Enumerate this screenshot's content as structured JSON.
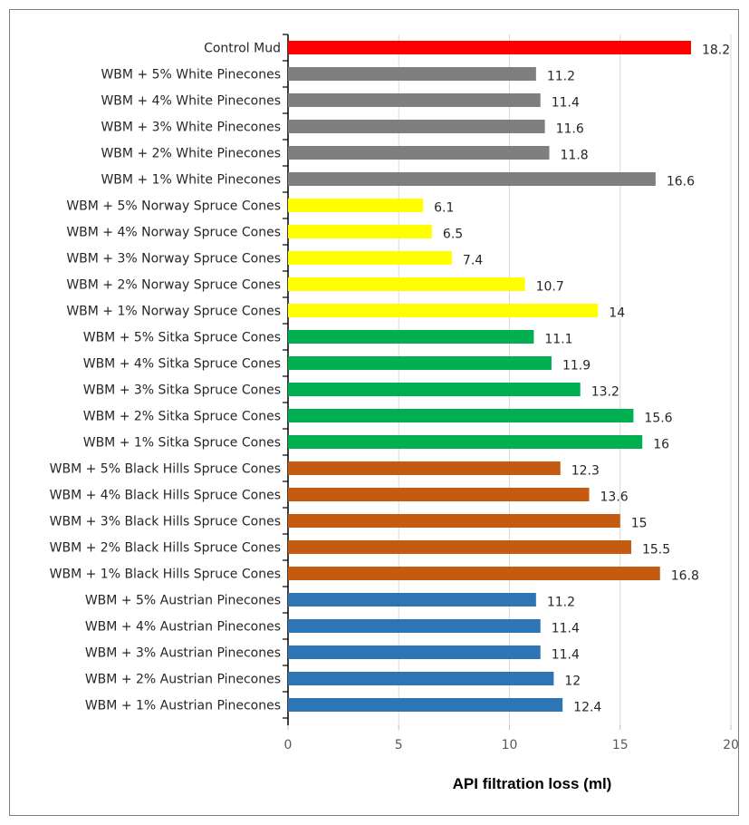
{
  "chart_data": {
    "type": "bar",
    "orientation": "horizontal",
    "xlabel": "API filtration loss  (ml)",
    "xlim": [
      0,
      20
    ],
    "xticks": [
      0,
      5,
      10,
      15,
      20
    ],
    "grid": true,
    "legend": "none",
    "categories": [
      "Control Mud",
      "WBM + 5% White Pinecones",
      "WBM + 4% White Pinecones",
      "WBM + 3% White Pinecones",
      "WBM + 2% White Pinecones",
      "WBM + 1% White Pinecones",
      "WBM + 5% Norway Spruce Cones",
      "WBM + 4% Norway Spruce Cones",
      "WBM + 3% Norway Spruce Cones",
      "WBM + 2% Norway Spruce Cones",
      "WBM + 1% Norway Spruce Cones",
      "WBM + 5% Sitka Spruce Cones",
      "WBM + 4% Sitka Spruce Cones",
      "WBM + 3% Sitka Spruce Cones",
      "WBM + 2% Sitka Spruce Cones",
      "WBM + 1% Sitka Spruce Cones",
      "WBM + 5% Black Hills Spruce Cones",
      "WBM + 4% Black Hills Spruce Cones",
      "WBM + 3% Black Hills Spruce Cones",
      "WBM + 2% Black Hills Spruce Cones",
      "WBM + 1% Black Hills Spruce Cones",
      "WBM + 5% Austrian Pinecones",
      "WBM + 4% Austrian Pinecones",
      "WBM + 3% Austrian Pinecones",
      "WBM + 2% Austrian Pinecones",
      "WBM + 1% Austrian Pinecones"
    ],
    "values": [
      18.2,
      11.2,
      11.4,
      11.6,
      11.8,
      16.6,
      6.1,
      6.5,
      7.4,
      10.7,
      14,
      11.1,
      11.9,
      13.2,
      15.6,
      16,
      12.3,
      13.6,
      15,
      15.5,
      16.8,
      11.2,
      11.4,
      11.4,
      12,
      12.4
    ],
    "value_labels": [
      "18.2",
      "11.2",
      "11.4",
      "11.6",
      "11.8",
      "16.6",
      "6.1",
      "6.5",
      "7.4",
      "10.7",
      "14",
      "11.1",
      "11.9",
      "13.2",
      "15.6",
      "16",
      "12.3",
      "13.6",
      "15",
      "15.5",
      "16.8",
      "11.2",
      "11.4",
      "11.4",
      "12",
      "12.4"
    ],
    "colors": [
      "#ff0000",
      "#7f7f7f",
      "#7f7f7f",
      "#7f7f7f",
      "#7f7f7f",
      "#7f7f7f",
      "#ffff00",
      "#ffff00",
      "#ffff00",
      "#ffff00",
      "#ffff00",
      "#00b050",
      "#00b050",
      "#00b050",
      "#00b050",
      "#00b050",
      "#c55a11",
      "#c55a11",
      "#c55a11",
      "#c55a11",
      "#c55a11",
      "#2e75b6",
      "#2e75b6",
      "#2e75b6",
      "#2e75b6",
      "#2e75b6"
    ]
  }
}
